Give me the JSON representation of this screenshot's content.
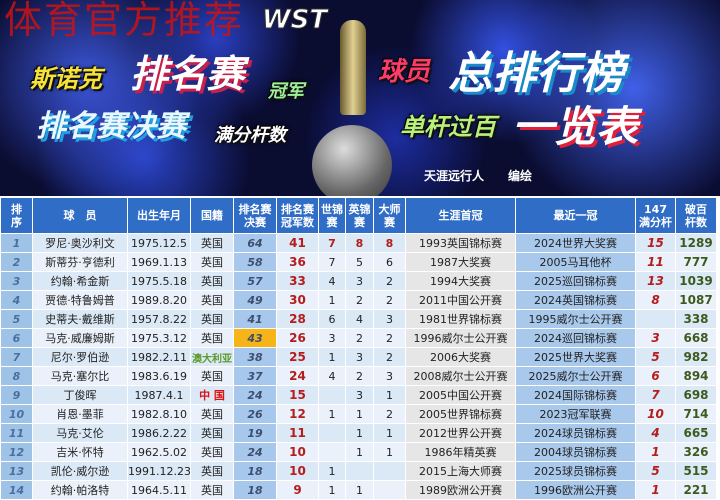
{
  "banner": {
    "watermark": "体育官方推荐",
    "logo": "WST",
    "line1a": "斯诺克",
    "line1b": "排名赛",
    "line1c": "冠军",
    "line1d": "球员",
    "line1e": "总排行榜",
    "line2a": "排名赛决赛",
    "line2b": "满分杆数",
    "line2c": "单杆过百",
    "line2d": "一览表",
    "author": "天涯远行人",
    "credit": "编绘"
  },
  "colors": {
    "header": "#2f6dc6",
    "highlight": "#f7b418",
    "red": "#b51c1c"
  },
  "table": {
    "headers": [
      "排\n序",
      "球　员",
      "出生年月",
      "国籍",
      "排名赛\n决赛",
      "排名赛\n冠军数",
      "世锦\n赛",
      "英锦\n赛",
      "大师\n赛",
      "生涯首冠",
      "最近一冠",
      "147\n满分杆",
      "破百\n杆数"
    ],
    "rows": [
      [
        "1",
        "罗尼·奥沙利文",
        "1975.12.5",
        "英国",
        "64",
        "41",
        "7",
        "8",
        "8",
        "1993英国锦标赛",
        "2024世界大奖赛",
        "15",
        "1289"
      ],
      [
        "2",
        "斯蒂芬·亨德利",
        "1969.1.13",
        "英国",
        "58",
        "36",
        "7",
        "5",
        "6",
        "1987大奖赛",
        "2005马耳他杯",
        "11",
        "777"
      ],
      [
        "3",
        "约翰·希金斯",
        "1975.5.18",
        "英国",
        "57",
        "33",
        "4",
        "3",
        "2",
        "1994大奖赛",
        "2025巡回锦标赛",
        "13",
        "1039"
      ],
      [
        "4",
        "贾德·特鲁姆普",
        "1989.8.20",
        "英国",
        "49",
        "30",
        "1",
        "2",
        "2",
        "2011中国公开赛",
        "2024英国锦标赛",
        "8",
        "1087"
      ],
      [
        "5",
        "史蒂夫·戴维斯",
        "1957.8.22",
        "英国",
        "41",
        "28",
        "6",
        "4",
        "3",
        "1981世界锦标赛",
        "1995威尔士公开赛",
        "",
        "338"
      ],
      [
        "6",
        "马克·威廉姆斯",
        "1975.3.12",
        "英国",
        "43",
        "26",
        "3",
        "2",
        "2",
        "1996威尔士公开赛",
        "2024巡回锦标赛",
        "3",
        "668"
      ],
      [
        "7",
        "尼尔·罗伯逊",
        "1982.2.11",
        "澳大利亚",
        "38",
        "25",
        "1",
        "3",
        "2",
        "2006大奖赛",
        "2025世界大奖赛",
        "5",
        "982"
      ],
      [
        "8",
        "马克·塞尔比",
        "1983.6.19",
        "英国",
        "37",
        "24",
        "4",
        "2",
        "3",
        "2008威尔士公开赛",
        "2025威尔士公开赛",
        "6",
        "894"
      ],
      [
        "9",
        "丁俊晖",
        "1987.4.1",
        "中 国",
        "24",
        "15",
        "",
        "3",
        "1",
        "2005中国公开赛",
        "2024国际锦标赛",
        "7",
        "698"
      ],
      [
        "10",
        "肖恩·墨菲",
        "1982.8.10",
        "英国",
        "26",
        "12",
        "1",
        "1",
        "2",
        "2005世界锦标赛",
        "2023冠军联赛",
        "10",
        "714"
      ],
      [
        "11",
        "马克·艾伦",
        "1986.2.22",
        "英国",
        "19",
        "11",
        "",
        "1",
        "1",
        "2012世界公开赛",
        "2024球员锦标赛",
        "4",
        "665"
      ],
      [
        "12",
        "吉米·怀特",
        "1962.5.02",
        "英国",
        "24",
        "10",
        "",
        "1",
        "1",
        "1986年精英赛",
        "2004球员锦标赛",
        "1",
        "326"
      ],
      [
        "13",
        "凯伦·威尔逊",
        "1991.12.23",
        "英国",
        "18",
        "10",
        "1",
        "",
        "",
        "2015上海大师赛",
        "2025球员锦标赛",
        "5",
        "515"
      ],
      [
        "14",
        "约翰·帕洛特",
        "1964.5.11",
        "英国",
        "18",
        "9",
        "1",
        "1",
        "",
        "1989欧洲公开赛",
        "1996欧洲公开赛",
        "1",
        "221"
      ]
    ]
  }
}
